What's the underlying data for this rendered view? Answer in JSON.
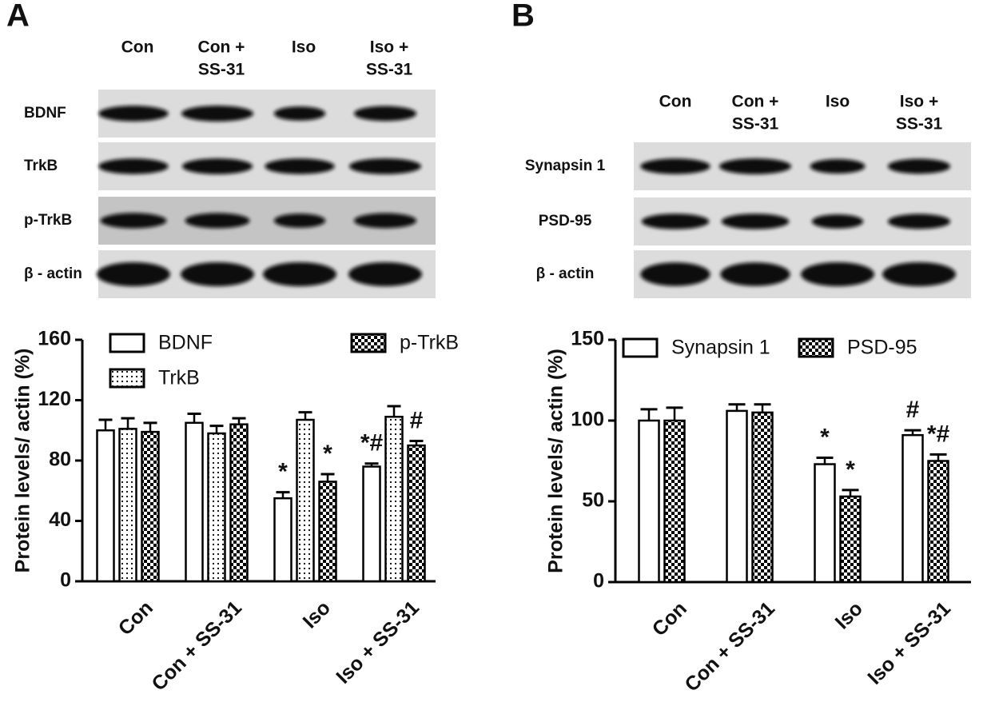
{
  "panels": [
    {
      "letter": "A",
      "blot": {
        "columns": [
          [
            "Con"
          ],
          [
            "Con +",
            "SS-31"
          ],
          [
            "Iso"
          ],
          [
            "Iso +",
            "SS-31"
          ]
        ],
        "rows": [
          "BDNF",
          "TrkB",
          "p-TrkB",
          "β - actin"
        ]
      }
    },
    {
      "letter": "B",
      "blot": {
        "columns": [
          [
            "Con"
          ],
          [
            "Con +",
            "SS-31"
          ],
          [
            "Iso"
          ],
          [
            "Iso +",
            "SS-31"
          ]
        ],
        "rows": [
          "Synapsin 1",
          "PSD-95",
          "β - actin"
        ]
      }
    }
  ],
  "chart_data": [
    {
      "type": "bar",
      "y_label": "Protein levels/ actin (%)",
      "categories": [
        "Con",
        "Con + SS-31",
        "Iso",
        "Iso + SS-31"
      ],
      "ylim": [
        0,
        160
      ],
      "yticks": [
        0,
        40,
        80,
        120,
        160
      ],
      "series": [
        {
          "name": "BDNF",
          "color": "#ffffff",
          "pattern": "none",
          "values": [
            100,
            105,
            55,
            76
          ],
          "errors": [
            7,
            6,
            4,
            2
          ],
          "annotations": [
            null,
            null,
            "*",
            "*#"
          ]
        },
        {
          "name": "TrkB",
          "color": "#ffffff",
          "pattern": "dots",
          "values": [
            101,
            98,
            107,
            109
          ],
          "errors": [
            7,
            5,
            5,
            7
          ],
          "annotations": [
            null,
            null,
            null,
            null
          ]
        },
        {
          "name": "p-TrkB",
          "color": "#ffffff",
          "pattern": "checker",
          "values": [
            99,
            104,
            66,
            90
          ],
          "errors": [
            6,
            4,
            5,
            3
          ],
          "annotations": [
            null,
            null,
            "*",
            "#"
          ]
        }
      ]
    },
    {
      "type": "bar",
      "y_label": "Protein levels/ actin (%)",
      "categories": [
        "Con",
        "Con + SS-31",
        "Iso",
        "Iso + SS-31"
      ],
      "ylim": [
        0,
        150
      ],
      "yticks": [
        0,
        50,
        100,
        150
      ],
      "series": [
        {
          "name": "Synapsin 1",
          "color": "#ffffff",
          "pattern": "none",
          "values": [
            100,
            106,
            73,
            91
          ],
          "errors": [
            7,
            4,
            4,
            3
          ],
          "annotations": [
            null,
            null,
            "*",
            "#"
          ]
        },
        {
          "name": "PSD-95",
          "color": "#ffffff",
          "pattern": "checker",
          "values": [
            100,
            105,
            53,
            75
          ],
          "errors": [
            8,
            5,
            4,
            4
          ],
          "annotations": [
            null,
            null,
            "*",
            "*#"
          ]
        }
      ]
    }
  ]
}
